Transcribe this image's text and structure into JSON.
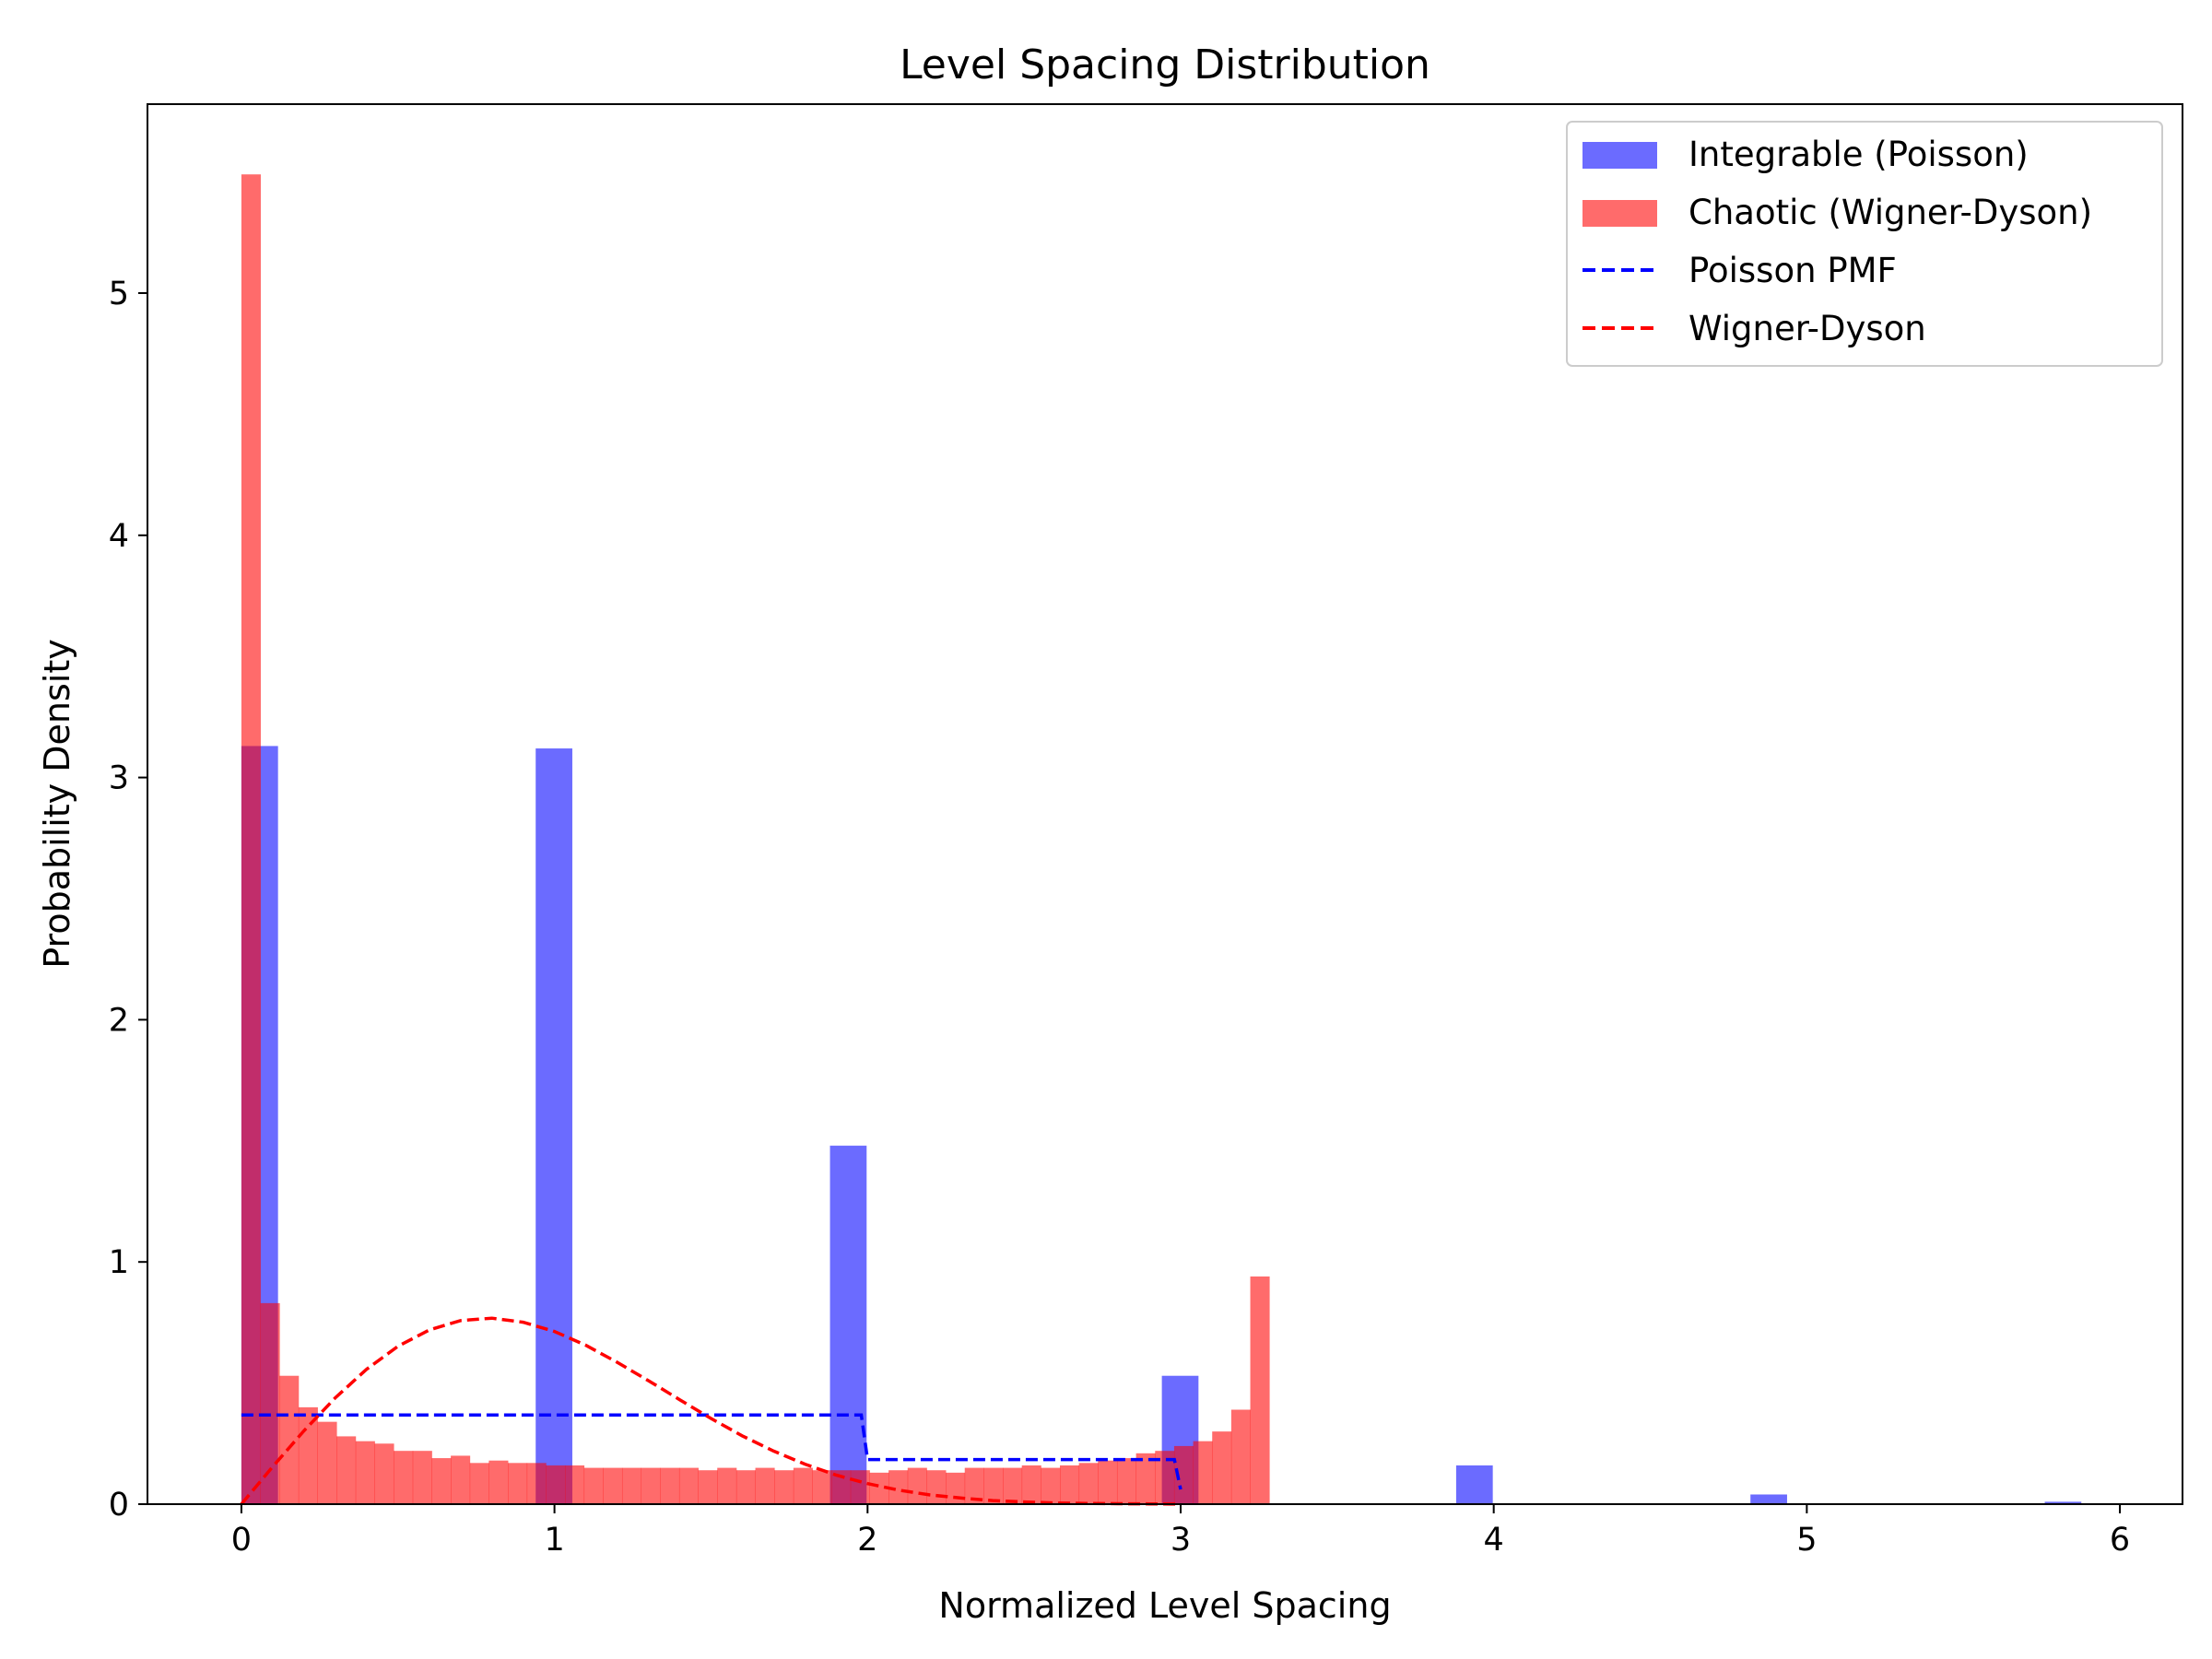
{
  "chart_data": {
    "type": "bar",
    "title": "Level Spacing Distribution",
    "xlabel": "Normalized Level Spacing",
    "ylabel": "Probability Density",
    "xlim": [
      -0.3,
      6.2
    ],
    "ylim": [
      0,
      5.78
    ],
    "xticks": [
      "0",
      "1",
      "2",
      "3",
      "4",
      "5",
      "6"
    ],
    "yticks": [
      "0",
      "1",
      "2",
      "3",
      "4",
      "5"
    ],
    "grid": false,
    "legend_placement": "top-right",
    "series": [
      {
        "name": "Integrable (Poisson)",
        "kind": "histogram",
        "color": "#0000ff",
        "alpha": 0.58,
        "bin_width": 0.117,
        "bins": [
          {
            "x": 0.0,
            "h": 3.13
          },
          {
            "x": 0.94,
            "h": 3.12
          },
          {
            "x": 1.88,
            "h": 1.48
          },
          {
            "x": 2.94,
            "h": 0.53
          },
          {
            "x": 3.88,
            "h": 0.16
          },
          {
            "x": 4.82,
            "h": 0.04
          },
          {
            "x": 5.76,
            "h": 0.01
          }
        ]
      },
      {
        "name": "Chaotic (Wigner-Dyson)",
        "kind": "histogram",
        "color": "#ff0000",
        "alpha": 0.58,
        "start": 0.0,
        "bin_width": 0.0608,
        "heights": [
          5.49,
          0.83,
          0.53,
          0.4,
          0.34,
          0.28,
          0.26,
          0.25,
          0.22,
          0.22,
          0.19,
          0.2,
          0.17,
          0.18,
          0.17,
          0.17,
          0.16,
          0.16,
          0.15,
          0.15,
          0.15,
          0.15,
          0.15,
          0.15,
          0.14,
          0.15,
          0.14,
          0.15,
          0.14,
          0.15,
          0.14,
          0.14,
          0.14,
          0.13,
          0.14,
          0.15,
          0.14,
          0.13,
          0.15,
          0.15,
          0.15,
          0.16,
          0.15,
          0.16,
          0.17,
          0.18,
          0.19,
          0.21,
          0.22,
          0.24,
          0.26,
          0.3,
          0.39,
          0.94
        ]
      },
      {
        "name": "Poisson PMF",
        "kind": "line",
        "color": "#0000ff",
        "dash": "dashed",
        "x": [
          0.0,
          1.0,
          1.98,
          2.0,
          2.98,
          3.0
        ],
        "y": [
          0.368,
          0.368,
          0.368,
          0.184,
          0.184,
          0.061
        ]
      },
      {
        "name": "Wigner-Dyson",
        "kind": "line",
        "color": "#ff0000",
        "dash": "dashed",
        "x": [
          0.0,
          0.1,
          0.2,
          0.3,
          0.4,
          0.5,
          0.6,
          0.7,
          0.8,
          0.9,
          1.0,
          1.1,
          1.2,
          1.3,
          1.4,
          1.5,
          1.6,
          1.7,
          1.8,
          1.9,
          2.0,
          2.1,
          2.2,
          2.3,
          2.4,
          2.5,
          2.6,
          2.7,
          2.8,
          2.9,
          3.0
        ],
        "y": [
          0.0,
          0.155,
          0.303,
          0.439,
          0.557,
          0.652,
          0.719,
          0.758,
          0.768,
          0.751,
          0.713,
          0.656,
          0.586,
          0.51,
          0.431,
          0.354,
          0.282,
          0.219,
          0.165,
          0.12,
          0.085,
          0.058,
          0.038,
          0.025,
          0.015,
          0.009,
          0.005,
          0.003,
          0.002,
          0.001,
          0.0005
        ]
      }
    ]
  }
}
